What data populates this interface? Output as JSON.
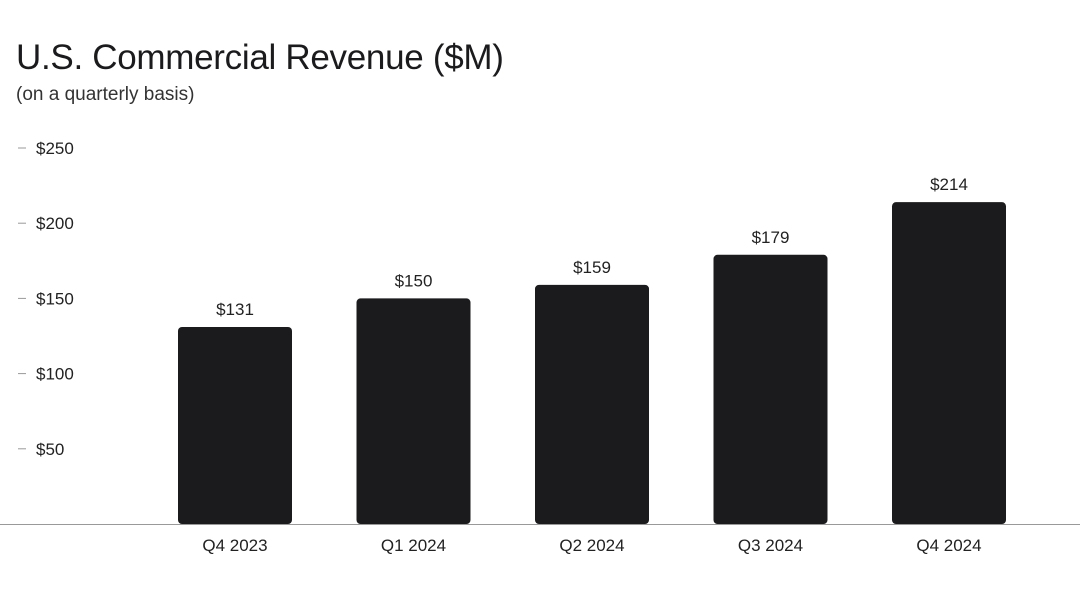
{
  "chart_data": {
    "type": "bar",
    "title": "U.S. Commercial Revenue ($M)",
    "subtitle": "(on a quarterly basis)",
    "categories": [
      "Q4 2023",
      "Q1 2024",
      "Q2 2024",
      "Q3 2024",
      "Q4 2024"
    ],
    "values": [
      131,
      150,
      159,
      179,
      214
    ],
    "data_labels": [
      "$131",
      "$150",
      "$159",
      "$179",
      "$214"
    ],
    "y_ticks": [
      50,
      100,
      150,
      200,
      250
    ],
    "y_tick_labels": [
      "$50",
      "$100",
      "$150",
      "$200",
      "$250"
    ],
    "ylim": [
      0,
      250
    ],
    "xlabel": "",
    "ylabel": "",
    "grid": false,
    "legend": "none",
    "colors": {
      "bar": "#1b1b1d",
      "axis": "#999999",
      "text": "#222222"
    }
  }
}
